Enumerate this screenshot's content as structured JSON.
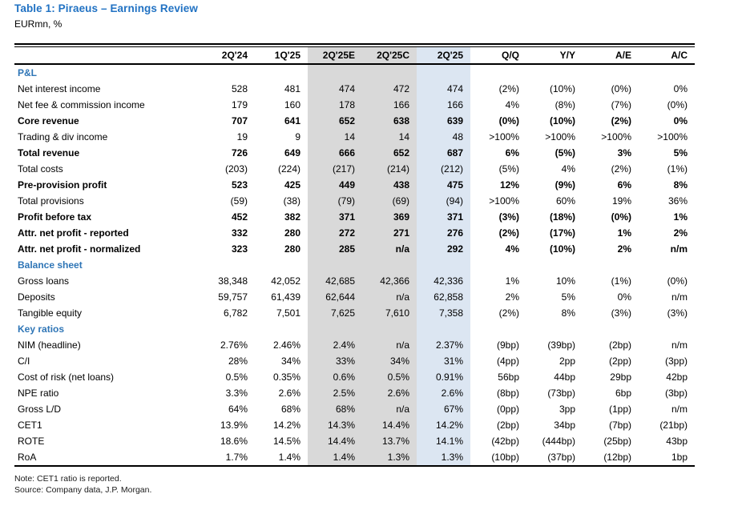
{
  "header": {
    "title": "Table 1: Piraeus – Earnings Review",
    "subtitle": "EURmn, %"
  },
  "footer": {
    "note": "Note: CET1 ratio is reported.",
    "source": "Source: Company data, J.P. Morgan."
  },
  "colors": {
    "accent_blue": "#2172c3",
    "section_blue": "#2e75b6",
    "highlight_gray": "#d9d9d9",
    "highlight_blue": "#dce6f2"
  },
  "chart_data": {
    "type": "table",
    "title": "Table 1: Piraeus – Earnings Review",
    "units": "EURmn, %",
    "columns": [
      {
        "label": "",
        "highlight": "none"
      },
      {
        "label": "2Q'24",
        "highlight": "none"
      },
      {
        "label": "1Q'25",
        "highlight": "none"
      },
      {
        "label": "2Q'25E",
        "highlight": "gray"
      },
      {
        "label": "2Q'25C",
        "highlight": "gray"
      },
      {
        "label": "2Q'25",
        "highlight": "blue"
      },
      {
        "label": "Q/Q",
        "highlight": "none"
      },
      {
        "label": "Y/Y",
        "highlight": "none"
      },
      {
        "label": "A/E",
        "highlight": "none"
      },
      {
        "label": "A/C",
        "highlight": "none"
      }
    ],
    "rows": [
      {
        "type": "section",
        "label": "P&L"
      },
      {
        "type": "data",
        "label": "Net interest income",
        "bold": false,
        "values": [
          "528",
          "481",
          "474",
          "472",
          "474",
          "(2%)",
          "(10%)",
          "(0%)",
          "0%"
        ]
      },
      {
        "type": "data",
        "label": "Net fee & commission income",
        "bold": false,
        "values": [
          "179",
          "160",
          "178",
          "166",
          "166",
          "4%",
          "(8%)",
          "(7%)",
          "(0%)"
        ]
      },
      {
        "type": "data",
        "label": "Core revenue",
        "bold": true,
        "values": [
          "707",
          "641",
          "652",
          "638",
          "639",
          "(0%)",
          "(10%)",
          "(2%)",
          "0%"
        ]
      },
      {
        "type": "data",
        "label": "Trading & div income",
        "bold": false,
        "values": [
          "19",
          "9",
          "14",
          "14",
          "48",
          ">100%",
          ">100%",
          ">100%",
          ">100%"
        ]
      },
      {
        "type": "data",
        "label": "Total revenue",
        "bold": true,
        "values": [
          "726",
          "649",
          "666",
          "652",
          "687",
          "6%",
          "(5%)",
          "3%",
          "5%"
        ]
      },
      {
        "type": "data",
        "label": "Total costs",
        "bold": false,
        "values": [
          "(203)",
          "(224)",
          "(217)",
          "(214)",
          "(212)",
          "(5%)",
          "4%",
          "(2%)",
          "(1%)"
        ]
      },
      {
        "type": "data",
        "label": "Pre-provision profit",
        "bold": true,
        "values": [
          "523",
          "425",
          "449",
          "438",
          "475",
          "12%",
          "(9%)",
          "6%",
          "8%"
        ]
      },
      {
        "type": "data",
        "label": "Total provisions",
        "bold": false,
        "values": [
          "(59)",
          "(38)",
          "(79)",
          "(69)",
          "(94)",
          ">100%",
          "60%",
          "19%",
          "36%"
        ]
      },
      {
        "type": "data",
        "label": "Profit before tax",
        "bold": true,
        "values": [
          "452",
          "382",
          "371",
          "369",
          "371",
          "(3%)",
          "(18%)",
          "(0%)",
          "1%"
        ]
      },
      {
        "type": "data",
        "label": "Attr. net profit - reported",
        "bold": true,
        "values": [
          "332",
          "280",
          "272",
          "271",
          "276",
          "(2%)",
          "(17%)",
          "1%",
          "2%"
        ]
      },
      {
        "type": "data",
        "label": "Attr. net profit - normalized",
        "bold": true,
        "values": [
          "323",
          "280",
          "285",
          "n/a",
          "292",
          "4%",
          "(10%)",
          "2%",
          "n/m"
        ]
      },
      {
        "type": "section",
        "label": "Balance sheet"
      },
      {
        "type": "data",
        "label": "Gross loans",
        "bold": false,
        "values": [
          "38,348",
          "42,052",
          "42,685",
          "42,366",
          "42,336",
          "1%",
          "10%",
          "(1%)",
          "(0%)"
        ]
      },
      {
        "type": "data",
        "label": "Deposits",
        "bold": false,
        "values": [
          "59,757",
          "61,439",
          "62,644",
          "n/a",
          "62,858",
          "2%",
          "5%",
          "0%",
          "n/m"
        ]
      },
      {
        "type": "data",
        "label": "Tangible equity",
        "bold": false,
        "values": [
          "6,782",
          "7,501",
          "7,625",
          "7,610",
          "7,358",
          "(2%)",
          "8%",
          "(3%)",
          "(3%)"
        ]
      },
      {
        "type": "section",
        "label": "Key ratios"
      },
      {
        "type": "data",
        "label": "NIM (headline)",
        "bold": false,
        "values": [
          "2.76%",
          "2.46%",
          "2.4%",
          "n/a",
          "2.37%",
          "(9bp)",
          "(39bp)",
          "(2bp)",
          "n/m"
        ]
      },
      {
        "type": "data",
        "label": "C/I",
        "bold": false,
        "values": [
          "28%",
          "34%",
          "33%",
          "34%",
          "31%",
          "(4pp)",
          "2pp",
          "(2pp)",
          "(3pp)"
        ]
      },
      {
        "type": "data",
        "label": "Cost of risk (net loans)",
        "bold": false,
        "values": [
          "0.5%",
          "0.35%",
          "0.6%",
          "0.5%",
          "0.91%",
          "56bp",
          "44bp",
          "29bp",
          "42bp"
        ]
      },
      {
        "type": "data",
        "label": "NPE ratio",
        "bold": false,
        "values": [
          "3.3%",
          "2.6%",
          "2.5%",
          "2.6%",
          "2.6%",
          "(8bp)",
          "(73bp)",
          "6bp",
          "(3bp)"
        ]
      },
      {
        "type": "data",
        "label": "Gross L/D",
        "bold": false,
        "values": [
          "64%",
          "68%",
          "68%",
          "n/a",
          "67%",
          "(0pp)",
          "3pp",
          "(1pp)",
          "n/m"
        ]
      },
      {
        "type": "data",
        "label": "CET1",
        "bold": false,
        "values": [
          "13.9%",
          "14.2%",
          "14.3%",
          "14.4%",
          "14.2%",
          "(2bp)",
          "34bp",
          "(7bp)",
          "(21bp)"
        ]
      },
      {
        "type": "data",
        "label": "ROTE",
        "bold": false,
        "values": [
          "18.6%",
          "14.5%",
          "14.4%",
          "13.7%",
          "14.1%",
          "(42bp)",
          "(444bp)",
          "(25bp)",
          "43bp"
        ]
      },
      {
        "type": "data",
        "label": "RoA",
        "bold": false,
        "values": [
          "1.7%",
          "1.4%",
          "1.4%",
          "1.3%",
          "1.3%",
          "(10bp)",
          "(37bp)",
          "(12bp)",
          "1bp"
        ]
      }
    ]
  }
}
